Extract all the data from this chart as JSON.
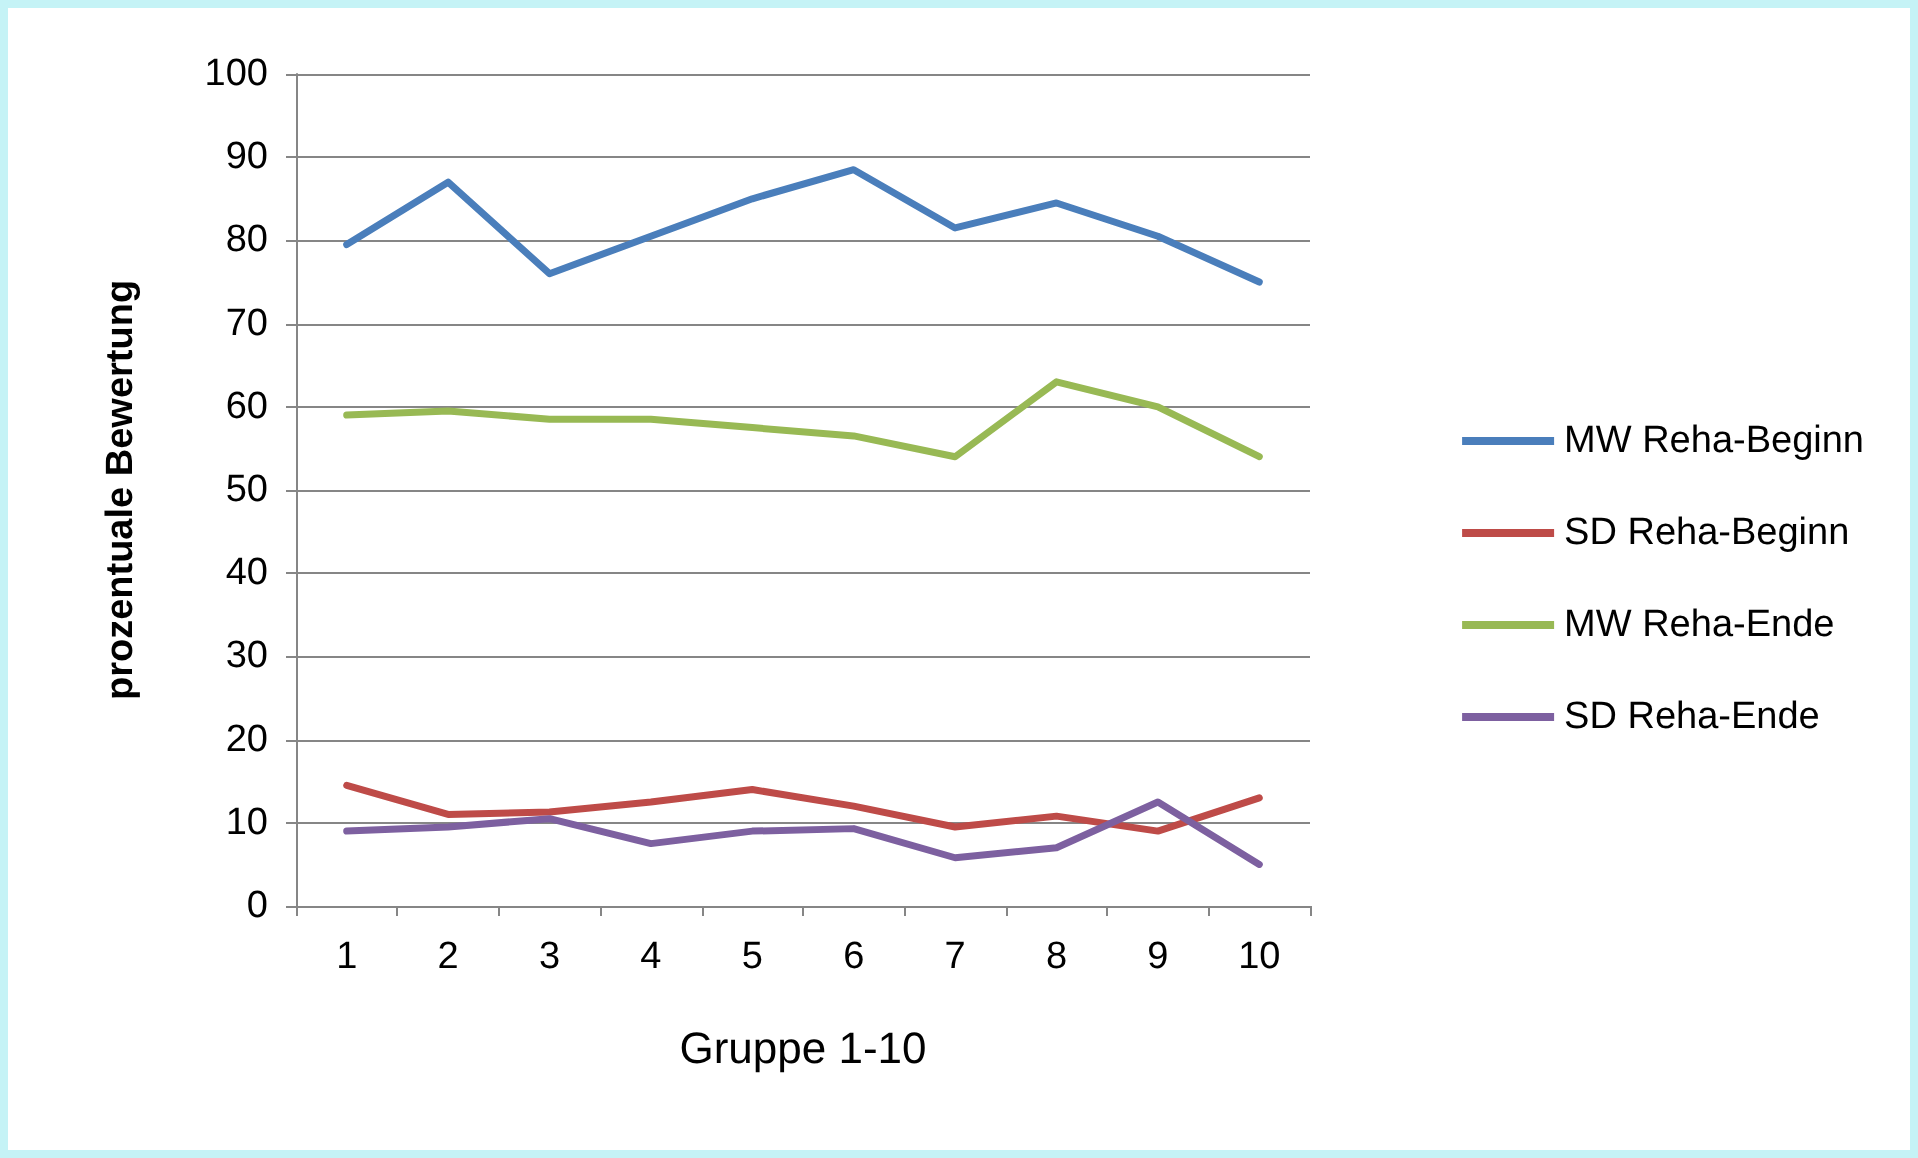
{
  "chart_data": {
    "type": "line",
    "xlabel": "Gruppe 1-10",
    "ylabel": "prozentuale Bewertung",
    "categories": [
      "1",
      "2",
      "3",
      "4",
      "5",
      "6",
      "7",
      "8",
      "9",
      "10"
    ],
    "series": [
      {
        "name": "MW Reha-Beginn",
        "color": "#4a7ebb",
        "values": [
          79.5,
          87,
          76,
          80.5,
          85,
          88.5,
          81.5,
          84.5,
          80.5,
          75
        ]
      },
      {
        "name": "SD Reha-Beginn",
        "color": "#be4b48",
        "values": [
          14.5,
          11,
          11.3,
          12.5,
          14,
          12,
          9.5,
          10.8,
          9,
          13
        ]
      },
      {
        "name": "MW Reha-Ende",
        "color": "#98b954",
        "values": [
          59,
          59.5,
          58.5,
          58.5,
          57.5,
          56.5,
          54,
          63,
          60,
          54
        ]
      },
      {
        "name": "SD Reha-Ende",
        "color": "#7d60a0",
        "values": [
          9,
          9.5,
          10.5,
          7.5,
          9,
          9.3,
          5.8,
          7,
          12.5,
          5
        ]
      }
    ],
    "ylim": [
      0,
      100
    ],
    "yticks": [
      0,
      10,
      20,
      30,
      40,
      50,
      60,
      70,
      80,
      90,
      100
    ],
    "grid": "y",
    "legend": "right",
    "marker": "none",
    "line_style": "solid"
  }
}
